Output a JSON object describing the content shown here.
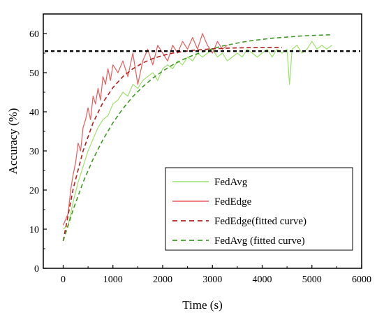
{
  "chart_data": {
    "type": "line",
    "title": "",
    "xlabel": "Time (s)",
    "ylabel": "Accuracy (%)",
    "xlim": [
      -400,
      6000
    ],
    "ylim": [
      0,
      65
    ],
    "x_ticks": [
      0,
      1000,
      2000,
      3000,
      4000,
      5000,
      6000
    ],
    "y_ticks": [
      0,
      10,
      20,
      30,
      40,
      50,
      60
    ],
    "reference_line": {
      "y": 55.5,
      "style": "dashed",
      "color": "#000000"
    },
    "legend_position": "lower-right",
    "grid": false,
    "series": [
      {
        "name": "FedAvg",
        "style": "solid",
        "color": "#9be36a",
        "x": [
          0,
          100,
          200,
          300,
          400,
          500,
          600,
          700,
          800,
          900,
          1000,
          1100,
          1200,
          1300,
          1400,
          1500,
          1600,
          1700,
          1800,
          1900,
          2000,
          2100,
          2200,
          2300,
          2400,
          2500,
          2600,
          2700,
          2800,
          2900,
          3000,
          3100,
          3200,
          3300,
          3400,
          3500,
          3600,
          3700,
          3800,
          3900,
          4000,
          4100,
          4200,
          4300,
          4400,
          4500,
          4550,
          4600,
          4700,
          4800,
          4900,
          5000,
          5100,
          5200,
          5300,
          5400
        ],
        "y": [
          10,
          11,
          17,
          22,
          26,
          30,
          33,
          36,
          38,
          39,
          42,
          43,
          45,
          44,
          47,
          46,
          48,
          49,
          50,
          48,
          51,
          52,
          51,
          53,
          52,
          54,
          53,
          55,
          54,
          55,
          56,
          54,
          55,
          53,
          54,
          55,
          54,
          56,
          55,
          54,
          55,
          56,
          54,
          56,
          55,
          56,
          47,
          56,
          57,
          55,
          56,
          58,
          56,
          57,
          56,
          57
        ]
      },
      {
        "name": "FedEdge",
        "style": "solid",
        "color": "#ea5a5a",
        "x": [
          0,
          100,
          150,
          200,
          250,
          300,
          350,
          400,
          450,
          500,
          550,
          600,
          650,
          700,
          750,
          800,
          850,
          900,
          950,
          1000,
          1100,
          1200,
          1300,
          1400,
          1500,
          1600,
          1700,
          1800,
          1900,
          2000,
          2100,
          2200,
          2300,
          2400,
          2500,
          2600,
          2700,
          2800,
          2900,
          3000,
          3100,
          3200,
          3300
        ],
        "y": [
          11,
          14,
          20,
          24,
          27,
          32,
          30,
          36,
          38,
          41,
          38,
          44,
          42,
          46,
          43,
          49,
          47,
          51,
          48,
          52,
          50,
          53,
          49,
          55,
          47,
          53,
          56,
          52,
          57,
          55,
          53,
          57,
          55,
          58,
          56,
          59,
          56,
          60,
          57,
          55,
          58,
          56,
          57
        ]
      },
      {
        "name": "FedEdge(fitted curve)",
        "style": "dashed",
        "color": "#b71c1c",
        "x": [
          0,
          200,
          400,
          600,
          800,
          1000,
          1200,
          1400,
          1600,
          1800,
          2000,
          2200,
          2400,
          2600,
          2800,
          3000,
          3200,
          3400,
          3600,
          3800,
          4000,
          4200,
          4400
        ],
        "y": [
          7.0,
          20.3,
          30.0,
          37.2,
          42.4,
          46.2,
          49.0,
          51.0,
          52.5,
          53.6,
          54.4,
          55.0,
          55.4,
          55.7,
          55.9,
          56.1,
          56.2,
          56.3,
          56.35,
          56.4,
          56.4,
          56.45,
          56.45
        ]
      },
      {
        "name": "FedAvg (fitted curve)",
        "style": "dashed",
        "color": "#3f9a24",
        "x": [
          0,
          200,
          400,
          600,
          800,
          1000,
          1200,
          1400,
          1600,
          1800,
          2000,
          2200,
          2400,
          2600,
          2800,
          3000,
          3200,
          3400,
          3600,
          3800,
          4000,
          4200,
          4400,
          4600,
          4800,
          5000,
          5200,
          5400
        ],
        "y": [
          7.0,
          15.0,
          22.0,
          27.9,
          32.9,
          37.2,
          40.8,
          43.9,
          46.4,
          48.6,
          50.4,
          52.0,
          53.3,
          54.4,
          55.3,
          56.1,
          56.8,
          57.3,
          57.8,
          58.2,
          58.5,
          58.8,
          59.0,
          59.2,
          59.4,
          59.5,
          59.6,
          59.7
        ]
      }
    ]
  }
}
